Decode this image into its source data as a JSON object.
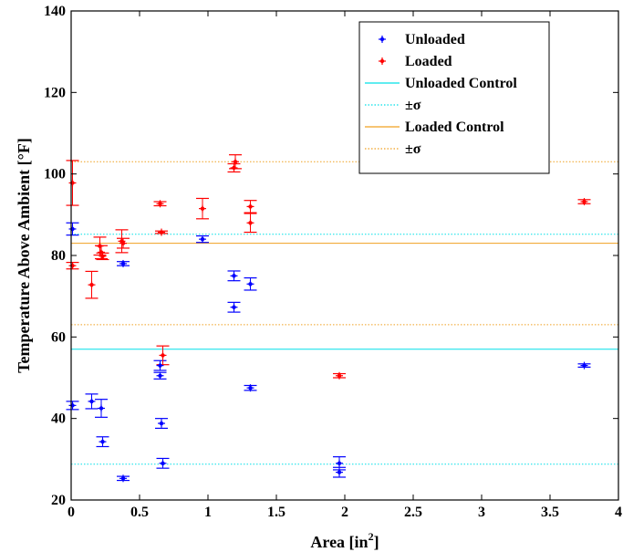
{
  "chart_data": {
    "type": "scatter",
    "title": "",
    "xlabel": "Area [in",
    "xlabel_sup": "2",
    "xlabel_close": "]",
    "ylabel": "Temperature Above Ambient [°F]",
    "xlim": [
      0,
      4
    ],
    "ylim": [
      20,
      140
    ],
    "x_ticks": [
      0,
      0.5,
      1,
      1.5,
      2,
      2.5,
      3,
      3.5,
      4
    ],
    "x_tick_labels": [
      "0",
      "0.5",
      "1",
      "1.5",
      "2",
      "2.5",
      "3",
      "3.5",
      "4"
    ],
    "y_ticks": [
      20,
      40,
      60,
      80,
      100,
      120,
      140
    ],
    "y_tick_labels": [
      "20",
      "40",
      "60",
      "80",
      "100",
      "120",
      "140"
    ],
    "grid": false,
    "legend_position": "top-right",
    "series": [
      {
        "name": "Unloaded",
        "color": "#0000ff",
        "points": [
          {
            "x": 0.01,
            "y": 86.5,
            "err": 1.5
          },
          {
            "x": 0.01,
            "y": 43.2,
            "err": 1.0
          },
          {
            "x": 0.15,
            "y": 44.2,
            "err": 1.8
          },
          {
            "x": 0.22,
            "y": 42.5,
            "err": 2.2
          },
          {
            "x": 0.23,
            "y": 34.3,
            "err": 1.2
          },
          {
            "x": 0.38,
            "y": 25.3,
            "err": 0.5
          },
          {
            "x": 0.38,
            "y": 78.0,
            "err": 0.5
          },
          {
            "x": 0.65,
            "y": 53.0,
            "err": 1.2
          },
          {
            "x": 0.65,
            "y": 50.5,
            "err": 0.8
          },
          {
            "x": 0.66,
            "y": 38.8,
            "err": 1.2
          },
          {
            "x": 0.67,
            "y": 29.0,
            "err": 1.2
          },
          {
            "x": 0.96,
            "y": 84.0,
            "err": 0.8
          },
          {
            "x": 1.19,
            "y": 75.0,
            "err": 1.2
          },
          {
            "x": 1.19,
            "y": 67.3,
            "err": 1.2
          },
          {
            "x": 1.31,
            "y": 73.0,
            "err": 1.5
          },
          {
            "x": 1.31,
            "y": 47.5,
            "err": 0.6
          },
          {
            "x": 1.96,
            "y": 29.0,
            "err": 1.6
          },
          {
            "x": 1.96,
            "y": 26.8,
            "err": 1.2
          },
          {
            "x": 3.75,
            "y": 53.0,
            "err": 0.4
          }
        ]
      },
      {
        "name": "Loaded",
        "color": "#ff0000",
        "points": [
          {
            "x": 0.01,
            "y": 97.8,
            "err": 5.5
          },
          {
            "x": 0.01,
            "y": 77.5,
            "err": 0.8
          },
          {
            "x": 0.15,
            "y": 72.8,
            "err": 3.3
          },
          {
            "x": 0.21,
            "y": 82.3,
            "err": 2.2
          },
          {
            "x": 0.22,
            "y": 80.8,
            "err": 1.6
          },
          {
            "x": 0.23,
            "y": 79.8,
            "err": 0.8
          },
          {
            "x": 0.37,
            "y": 83.5,
            "err": 2.8
          },
          {
            "x": 0.38,
            "y": 83.0,
            "err": 1.2
          },
          {
            "x": 0.65,
            "y": 92.7,
            "err": 0.5
          },
          {
            "x": 0.66,
            "y": 85.7,
            "err": 0.3
          },
          {
            "x": 0.67,
            "y": 55.5,
            "err": 2.3
          },
          {
            "x": 0.96,
            "y": 91.5,
            "err": 2.5
          },
          {
            "x": 1.19,
            "y": 101.5,
            "err": 1.0
          },
          {
            "x": 1.2,
            "y": 103.0,
            "err": 1.7
          },
          {
            "x": 1.31,
            "y": 92.0,
            "err": 1.5
          },
          {
            "x": 1.31,
            "y": 88.0,
            "err": 2.3
          },
          {
            "x": 1.96,
            "y": 50.5,
            "err": 0.5
          },
          {
            "x": 3.75,
            "y": 93.2,
            "err": 0.5
          }
        ]
      }
    ],
    "reference_lines": [
      {
        "name": "Unloaded Control",
        "color": "#00e0e8",
        "style": "solid",
        "y": 57.0
      },
      {
        "name": "±σ",
        "color": "#00e0e8",
        "style": "dotted",
        "y": [
          85.2,
          28.8
        ]
      },
      {
        "name": "Loaded Control",
        "color": "#f0a020",
        "style": "solid",
        "y": 83.0
      },
      {
        "name": "±σ",
        "color": "#f0a020",
        "style": "dotted",
        "y": [
          103.0,
          63.0
        ]
      }
    ]
  }
}
